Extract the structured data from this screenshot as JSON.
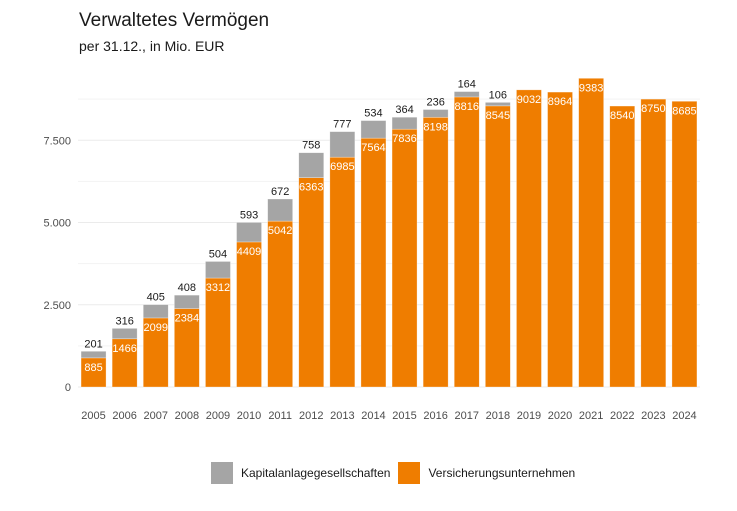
{
  "chart_data": {
    "type": "bar",
    "stacked": true,
    "title": "Verwaltetes Vermögen",
    "subtitle": "per 31.12., in Mio. EUR",
    "xlabel": "",
    "ylabel": "",
    "categories": [
      "2005",
      "2006",
      "2007",
      "2008",
      "2009",
      "2010",
      "2011",
      "2012",
      "2013",
      "2014",
      "2015",
      "2016",
      "2017",
      "2018",
      "2019",
      "2020",
      "2021",
      "2022",
      "2023",
      "2024"
    ],
    "series": [
      {
        "name": "Versicherungsunternehmen",
        "color": "#EF7D00",
        "values": [
          885,
          1466,
          2099,
          2384,
          3312,
          4409,
          5042,
          6363,
          6985,
          7564,
          7836,
          8198,
          8816,
          8545,
          9032,
          8964,
          9383,
          8540,
          8750,
          8685
        ]
      },
      {
        "name": "Kapitalanlagegesellschaften",
        "color": "#A5A5A5",
        "values": [
          201,
          316,
          405,
          408,
          504,
          593,
          672,
          758,
          777,
          534,
          364,
          236,
          164,
          106,
          null,
          null,
          null,
          null,
          null,
          null
        ]
      }
    ],
    "ylim": [
      0,
      10000
    ],
    "yticks": [
      0,
      2500,
      5000,
      7500
    ],
    "ytick_labels": [
      "0",
      "2.500",
      "5.000",
      "7.500"
    ],
    "minor_grid": [
      1250,
      3750,
      6250,
      8750
    ],
    "grid": true,
    "legend": {
      "position": "bottom",
      "entries": [
        {
          "label": "Kapitalanlagegesellschaften",
          "color": "#A5A5A5"
        },
        {
          "label": "Versicherungsunternehmen",
          "color": "#EF7D00"
        }
      ]
    }
  }
}
